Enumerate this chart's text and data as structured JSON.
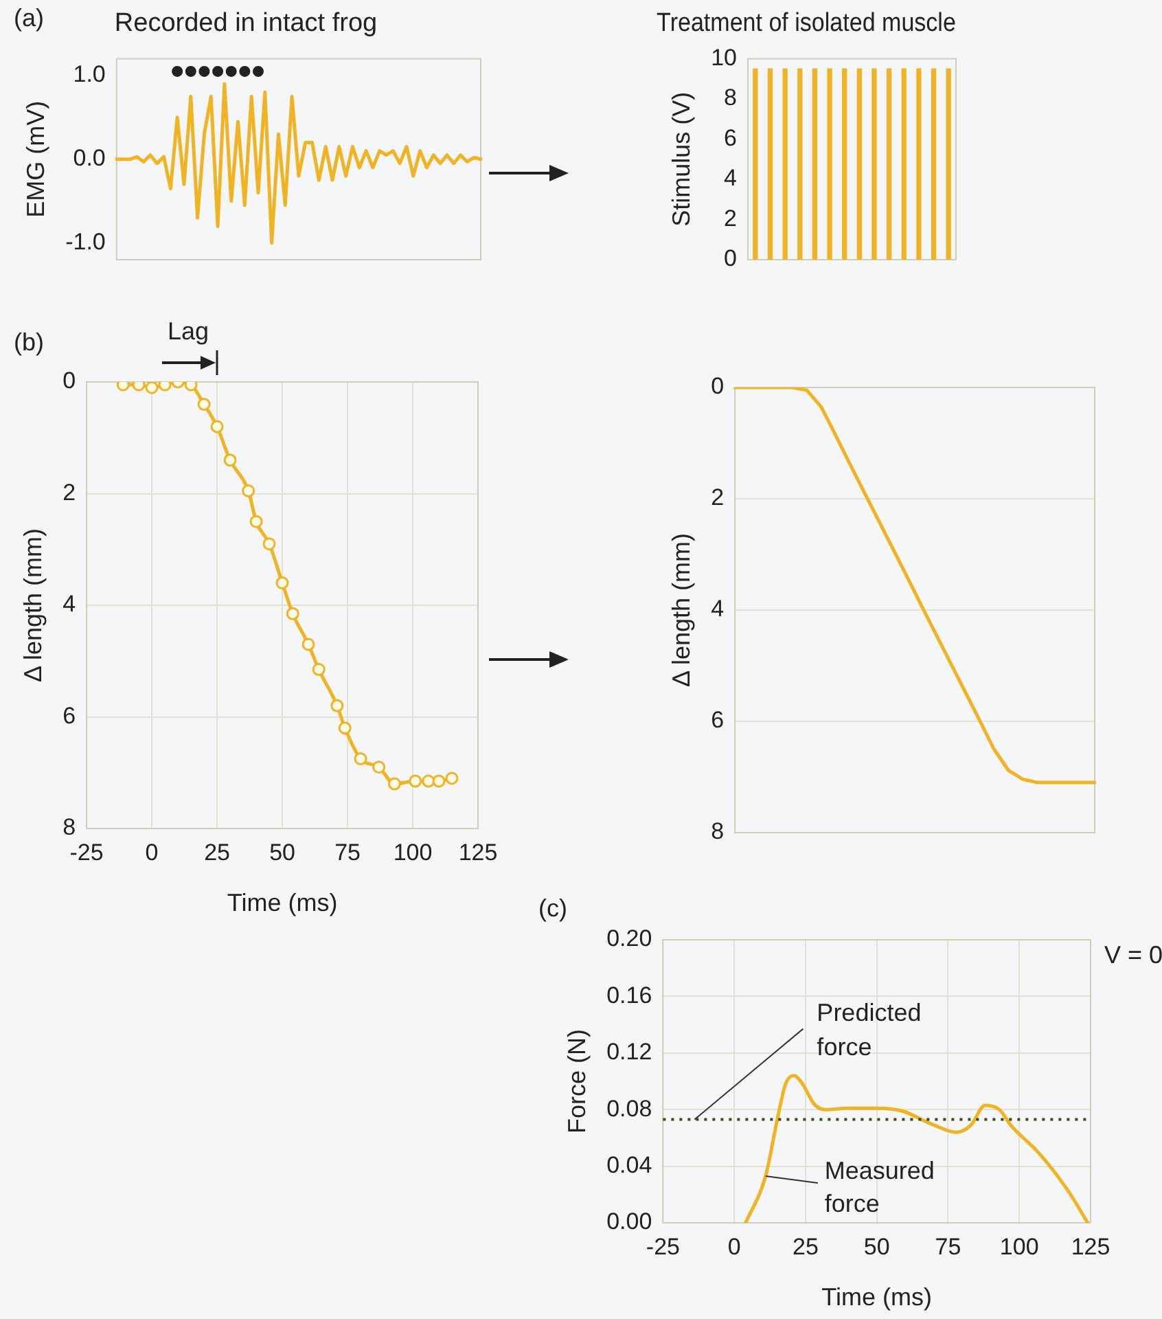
{
  "chart_data": [
    {
      "type": "line",
      "title": "Recorded in intact frog",
      "ylabel": "EMG (mV)",
      "annotations": [
        "(a)"
      ],
      "categories": [
        null,
        null,
        null,
        null,
        null,
        null,
        null,
        null,
        null,
        null,
        null,
        null,
        null,
        null,
        null,
        null,
        null,
        null,
        null,
        null,
        null,
        null,
        null,
        null,
        null,
        null,
        null,
        null,
        null,
        null,
        null,
        null,
        null,
        null,
        null,
        null,
        null,
        null,
        null,
        null,
        null,
        null,
        null,
        null,
        null,
        null,
        null,
        null,
        null,
        null,
        null,
        null,
        null,
        null,
        null
      ],
      "series": [
        {
          "type": "line",
          "color": "#f0b323",
          "values": [
            0,
            0,
            0,
            0.03,
            -0.03,
            0.05,
            -0.05,
            0.03,
            -0.35,
            0.5,
            -0.3,
            0.75,
            -0.7,
            0.3,
            0.75,
            -0.8,
            0.9,
            -0.5,
            0.45,
            -0.55,
            0.75,
            -0.4,
            0.8,
            -1.0,
            0.3,
            -0.55,
            0.75,
            -0.2,
            0.2,
            0.2,
            -0.25,
            0.15,
            -0.25,
            0.15,
            -0.2,
            0.15,
            -0.1,
            0.1,
            -0.1,
            0.1,
            0.05,
            0.1,
            -0.05,
            0.15,
            -0.2,
            0.1,
            -0.1,
            0.05,
            -0.05,
            0.05,
            -0.05,
            0.05,
            -0.03,
            0.02,
            0
          ]
        },
        {
          "type": "scatter",
          "color": "#222222",
          "marker": "circle",
          "values": [
            null,
            null,
            null,
            null,
            null,
            null,
            null,
            null,
            null,
            1.05,
            null,
            1.05,
            null,
            1.05,
            null,
            1.05,
            null,
            1.05,
            null,
            1.05,
            null,
            1.05,
            null,
            null,
            null,
            null,
            null,
            null,
            null,
            null,
            null,
            null,
            null,
            null,
            null,
            null,
            null,
            null,
            null,
            null,
            null,
            null,
            null,
            null,
            null,
            null,
            null,
            null,
            null,
            null,
            null,
            null,
            null,
            null,
            null
          ]
        }
      ],
      "ylim": [
        -1.2,
        1.2
      ],
      "yticks": [
        {
          "value": 1,
          "label": "1.0"
        },
        {
          "value": 0,
          "label": "0.0"
        },
        {
          "value": -1,
          "label": "-1.0"
        }
      ],
      "tick_labels": "y"
    },
    {
      "type": "bar",
      "title": "Treatment of isolated muscle",
      "ylabel": "Stimulus (V)",
      "categories": [
        null,
        null,
        null,
        null,
        null,
        null,
        null,
        null,
        null,
        null,
        null,
        null,
        null,
        null
      ],
      "values": [
        9.5,
        9.5,
        9.5,
        9.5,
        9.5,
        9.5,
        9.5,
        9.5,
        9.5,
        9.5,
        9.5,
        9.5,
        9.5,
        9.5
      ],
      "color": "#f0b323",
      "ylim": [
        0,
        10
      ],
      "yticks": [
        0,
        2,
        4,
        6,
        8,
        10
      ],
      "tick_labels": "y"
    },
    {
      "type": "line",
      "xlabel": "Time (ms)",
      "ylabel": "Δ length (mm)",
      "annotations": [
        "(b)",
        "Lag"
      ],
      "marker": "circle",
      "grid": true,
      "x": [
        -11,
        -5,
        0,
        5,
        10,
        15,
        20,
        25,
        30,
        37,
        40,
        45,
        50,
        54,
        60,
        64,
        71,
        74,
        80,
        87,
        93,
        101,
        106,
        110,
        115
      ],
      "values": [
        0.05,
        0.05,
        0.1,
        0.05,
        0,
        0.05,
        0.4,
        0.8,
        1.4,
        1.95,
        2.5,
        2.9,
        3.6,
        4.15,
        4.7,
        5.15,
        5.8,
        6.2,
        6.75,
        6.9,
        7.2,
        7.15,
        7.15,
        7.15,
        7.1
      ],
      "color": "#f0b323",
      "xlim": [
        -25,
        125
      ],
      "xticks": [
        -25,
        0,
        25,
        50,
        75,
        100,
        125
      ],
      "ylim": [
        8,
        0
      ],
      "yticks": [
        0,
        2,
        4,
        6,
        8
      ]
    },
    {
      "type": "line",
      "ylabel": "Δ length (mm)",
      "grid": "y",
      "categories": [
        null,
        null,
        null,
        null,
        null,
        null,
        null,
        null,
        null,
        null,
        null,
        null,
        null,
        null,
        null,
        null,
        null,
        null,
        null,
        null,
        null,
        null,
        null,
        null,
        null,
        null
      ],
      "values": [
        0,
        0,
        0,
        0,
        0,
        0.05,
        0.35,
        0.86,
        1.38,
        1.89,
        2.4,
        2.91,
        3.42,
        3.94,
        4.45,
        4.96,
        5.47,
        5.98,
        6.5,
        6.88,
        7.04,
        7.1,
        7.1,
        7.1,
        7.1,
        7.1
      ],
      "color": "#f0b323",
      "ylim": [
        8,
        0
      ],
      "yticks": [
        0,
        2,
        4,
        6,
        8
      ],
      "tick_labels": "y"
    },
    {
      "type": "line",
      "xlabel": "Time (ms)",
      "ylabel": "Force (N)",
      "grid": true,
      "annotations": [
        "(c)",
        "V = 0",
        {
          "text": "Measured force",
          "x": 11,
          "y": 0.033
        }
      ],
      "ref_lines": [
        {
          "axis": "y",
          "value": 0.073,
          "label": "Predicted force",
          "line_style": "dotted",
          "color": "#3d4a1a"
        }
      ],
      "x": [
        4,
        11,
        15,
        18,
        21,
        24,
        28,
        32,
        40,
        50,
        59,
        69,
        78,
        83,
        88,
        93,
        97,
        107,
        117,
        124
      ],
      "values": [
        0,
        0.033,
        0.072,
        0.098,
        0.104,
        0.098,
        0.084,
        0.08,
        0.081,
        0.081,
        0.079,
        0.07,
        0.064,
        0.069,
        0.083,
        0.08,
        0.069,
        0.049,
        0.023,
        0
      ],
      "color": "#f0b323",
      "xlim": [
        -25,
        125
      ],
      "xticks": [
        -25,
        0,
        25,
        50,
        75,
        100,
        125
      ],
      "ylim": [
        0,
        0.2
      ],
      "yticks": [
        {
          "value": 0,
          "label": "0.00"
        },
        {
          "value": 0.04,
          "label": "0.04"
        },
        {
          "value": 0.08,
          "label": "0.08"
        },
        {
          "value": 0.12,
          "label": "0.12"
        },
        {
          "value": 0.16,
          "label": "0.16"
        },
        {
          "value": 0.2,
          "label": "0.20"
        }
      ]
    }
  ]
}
